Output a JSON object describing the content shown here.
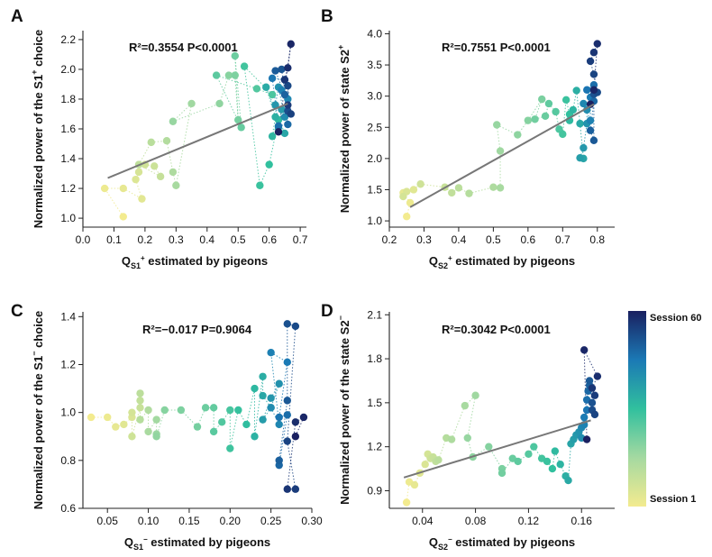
{
  "figure": {
    "colorbar": {
      "top_label": "Session 60",
      "bottom_label": "Session 1"
    }
  },
  "chart_data": [
    {
      "panel": "A",
      "type": "scatter",
      "xlabel": {
        "main": "Q",
        "sub": "S1",
        "sup": "+",
        "rest": " estimated by pigeons"
      },
      "ylabel": {
        "pre": "Normalized power of the S1",
        "sup": "+",
        "post": " choice"
      },
      "stats": {
        "r2": "R²=0.3554",
        "p": "P<0.0001"
      },
      "xlim": [
        0.0,
        0.72
      ],
      "ylim": [
        0.94,
        2.26
      ],
      "xticks": [
        0.0,
        0.1,
        0.2,
        0.3,
        0.4,
        0.5,
        0.6,
        0.7
      ],
      "xtick_labels": [
        "0.0",
        "0.1",
        "0.2",
        "0.3",
        "0.4",
        "0.5",
        "0.6",
        "0.7"
      ],
      "yticks": [
        1.0,
        1.2,
        1.4,
        1.6,
        1.8,
        2.0,
        2.2
      ],
      "ytick_labels": [
        "1.0",
        "1.2",
        "1.4",
        "1.6",
        "1.8",
        "2.0",
        "2.2"
      ],
      "fit": {
        "x": [
          0.08,
          0.66
        ],
        "y": [
          1.27,
          1.77
        ]
      },
      "x": [
        0.13,
        0.07,
        0.13,
        0.19,
        0.17,
        0.18,
        0.2,
        0.23,
        0.25,
        0.18,
        0.22,
        0.27,
        0.29,
        0.3,
        0.35,
        0.29,
        0.44,
        0.47,
        0.49,
        0.5,
        0.49,
        0.51,
        0.43,
        0.56,
        0.61,
        0.52,
        0.57,
        0.6,
        0.63,
        0.61,
        0.62,
        0.59,
        0.65,
        0.63,
        0.64,
        0.62,
        0.63,
        0.65,
        0.66,
        0.64,
        0.65,
        0.61,
        0.63,
        0.66,
        0.65,
        0.62,
        0.64,
        0.66,
        0.66,
        0.67,
        0.66,
        0.65,
        0.66,
        0.67,
        0.63
      ],
      "y": [
        1.01,
        1.2,
        1.2,
        1.13,
        1.26,
        1.31,
        1.36,
        1.35,
        1.28,
        1.36,
        1.51,
        1.52,
        1.31,
        1.22,
        1.77,
        1.65,
        1.77,
        1.96,
        1.96,
        1.66,
        2.09,
        1.61,
        1.96,
        1.87,
        1.83,
        2.02,
        1.22,
        1.36,
        1.66,
        1.55,
        1.68,
        1.88,
        1.57,
        1.61,
        1.73,
        1.76,
        1.88,
        1.68,
        1.8,
        1.86,
        1.93,
        1.94,
        1.62,
        1.63,
        1.83,
        1.99,
        2.0,
        1.72,
        1.89,
        1.7,
        1.76,
        1.93,
        2.01,
        2.17,
        1.58
      ]
    },
    {
      "panel": "B",
      "type": "scatter",
      "xlabel": {
        "main": "Q",
        "sub": "S2",
        "sup": "+",
        "rest": " estimated by pigeons"
      },
      "ylabel": {
        "pre": "Normalized power of state S2",
        "sup": "+",
        "post": ""
      },
      "stats": {
        "r2": "R²=0.7551",
        "p": "P<0.0001"
      },
      "xlim": [
        0.2,
        0.85
      ],
      "ylim": [
        0.9,
        4.05
      ],
      "xticks": [
        0.2,
        0.3,
        0.4,
        0.5,
        0.6,
        0.7,
        0.8
      ],
      "xtick_labels": [
        "0.2",
        "0.3",
        "0.4",
        "0.5",
        "0.6",
        "0.7",
        "0.8"
      ],
      "yticks": [
        1.0,
        1.5,
        2.0,
        2.5,
        3.0,
        3.5,
        4.0
      ],
      "ytick_labels": [
        "1.0",
        "1.5",
        "2.0",
        "2.5",
        "3.0",
        "3.5",
        "4.0"
      ],
      "fit": {
        "x": [
          0.26,
          0.79
        ],
        "y": [
          1.22,
          2.87
        ]
      },
      "x": [
        0.25,
        0.26,
        0.24,
        0.27,
        0.25,
        0.24,
        0.29,
        0.36,
        0.38,
        0.4,
        0.43,
        0.5,
        0.52,
        0.52,
        0.51,
        0.57,
        0.6,
        0.64,
        0.62,
        0.65,
        0.66,
        0.68,
        0.69,
        0.7,
        0.71,
        0.72,
        0.72,
        0.73,
        0.74,
        0.75,
        0.76,
        0.75,
        0.76,
        0.77,
        0.77,
        0.76,
        0.78,
        0.78,
        0.77,
        0.79,
        0.79,
        0.78,
        0.79,
        0.79,
        0.8,
        0.79,
        0.78,
        0.79,
        0.8,
        0.79,
        0.78
      ],
      "y": [
        1.07,
        1.29,
        1.45,
        1.5,
        1.47,
        1.39,
        1.59,
        1.54,
        1.45,
        1.53,
        1.44,
        1.54,
        1.53,
        2.12,
        2.54,
        2.38,
        2.61,
        2.95,
        2.63,
        2.68,
        2.88,
        2.75,
        2.47,
        2.39,
        2.94,
        2.71,
        2.61,
        2.78,
        3.09,
        2.56,
        2.0,
        2.01,
        2.17,
        2.56,
        2.78,
        2.88,
        2.61,
        2.98,
        3.1,
        3.18,
        2.92,
        2.45,
        2.29,
        3.03,
        3.06,
        3.35,
        3.56,
        3.7,
        3.84,
        3.1,
        2.87
      ]
    },
    {
      "panel": "C",
      "type": "scatter",
      "xlabel": {
        "main": "Q",
        "sub": "S1",
        "sup": "−",
        "rest": " estimated by pigeons"
      },
      "ylabel": {
        "pre": "Normalized power of the S1",
        "sup": "−",
        "post": " choice"
      },
      "stats": {
        "r2": "R²=−0.017",
        "p": "P=0.9064"
      },
      "xlim": [
        0.02,
        0.3
      ],
      "ylim": [
        0.6,
        1.42
      ],
      "xticks": [
        0.05,
        0.1,
        0.15,
        0.2,
        0.25,
        0.3
      ],
      "xtick_labels": [
        "0.05",
        "0.10",
        "0.15",
        "0.20",
        "0.25",
        "0.30"
      ],
      "yticks": [
        0.6,
        0.8,
        1.0,
        1.2,
        1.4
      ],
      "ytick_labels": [
        "0.6",
        "0.8",
        "1.0",
        "1.2",
        "1.4"
      ],
      "fit": null,
      "x": [
        0.03,
        0.05,
        0.06,
        0.07,
        0.08,
        0.08,
        0.08,
        0.09,
        0.09,
        0.09,
        0.09,
        0.1,
        0.1,
        0.11,
        0.11,
        0.11,
        0.12,
        0.14,
        0.16,
        0.17,
        0.18,
        0.18,
        0.19,
        0.2,
        0.2,
        0.21,
        0.22,
        0.23,
        0.23,
        0.24,
        0.24,
        0.25,
        0.24,
        0.25,
        0.26,
        0.25,
        0.26,
        0.25,
        0.27,
        0.26,
        0.27,
        0.26,
        0.26,
        0.27,
        0.27,
        0.28,
        0.27,
        0.28,
        0.27,
        0.28,
        0.29,
        0.28
      ],
      "y": [
        0.98,
        0.98,
        0.94,
        0.95,
        0.98,
        1.0,
        0.9,
        1.02,
        1.05,
        1.08,
        0.97,
        1.01,
        0.92,
        0.97,
        0.91,
        0.9,
        1.01,
        1.01,
        0.94,
        1.02,
        1.02,
        0.92,
        0.96,
        1.01,
        0.85,
        1.01,
        0.95,
        1.1,
        0.9,
        1.15,
        1.07,
        1.02,
        0.97,
        1.06,
        1.12,
        1.02,
        0.95,
        1.25,
        1.21,
        0.98,
        0.99,
        0.78,
        0.8,
        1.05,
        1.37,
        1.36,
        0.88,
        0.68,
        0.68,
        0.96,
        0.98,
        0.9
      ]
    },
    {
      "panel": "D",
      "type": "scatter",
      "xlabel": {
        "main": "Q",
        "sub": "S2",
        "sup": "−",
        "rest": " estimated by pigeons"
      },
      "ylabel": {
        "pre": "Normalized power of the state S2",
        "sup": "−",
        "post": ""
      },
      "stats": {
        "r2": "R²=0.3042",
        "p": "P<0.0001"
      },
      "xlim": [
        0.015,
        0.185
      ],
      "ylim": [
        0.78,
        2.12
      ],
      "xticks": [
        0.04,
        0.08,
        0.12,
        0.16
      ],
      "xtick_labels": [
        "0.04",
        "0.08",
        "0.12",
        "0.16"
      ],
      "yticks": [
        0.9,
        1.2,
        1.5,
        1.8,
        2.1
      ],
      "ytick_labels": [
        "0.9",
        "1.2",
        "1.5",
        "1.8",
        "2.1"
      ],
      "fit": {
        "x": [
          0.026,
          0.167
        ],
        "y": [
          0.99,
          1.38
        ]
      },
      "x": [
        0.028,
        0.03,
        0.034,
        0.038,
        0.042,
        0.044,
        0.046,
        0.048,
        0.05,
        0.052,
        0.058,
        0.062,
        0.072,
        0.08,
        0.074,
        0.078,
        0.09,
        0.1,
        0.1,
        0.108,
        0.112,
        0.12,
        0.124,
        0.13,
        0.134,
        0.138,
        0.14,
        0.144,
        0.148,
        0.15,
        0.152,
        0.154,
        0.156,
        0.158,
        0.16,
        0.16,
        0.162,
        0.162,
        0.164,
        0.164,
        0.165,
        0.166,
        0.166,
        0.168,
        0.168,
        0.17,
        0.17,
        0.168,
        0.172,
        0.162,
        0.164
      ],
      "y": [
        0.82,
        0.96,
        0.94,
        1.02,
        1.08,
        1.15,
        1.12,
        1.13,
        1.1,
        1.11,
        1.26,
        1.25,
        1.48,
        1.55,
        1.26,
        1.13,
        1.2,
        1.05,
        1.02,
        1.12,
        1.1,
        1.15,
        1.2,
        1.12,
        1.1,
        1.05,
        1.17,
        1.08,
        1.0,
        0.97,
        1.22,
        1.25,
        1.28,
        1.3,
        1.26,
        1.33,
        1.35,
        1.4,
        1.45,
        1.52,
        1.58,
        1.62,
        1.65,
        1.5,
        1.45,
        1.42,
        1.55,
        1.6,
        1.68,
        1.86,
        1.25
      ]
    }
  ]
}
